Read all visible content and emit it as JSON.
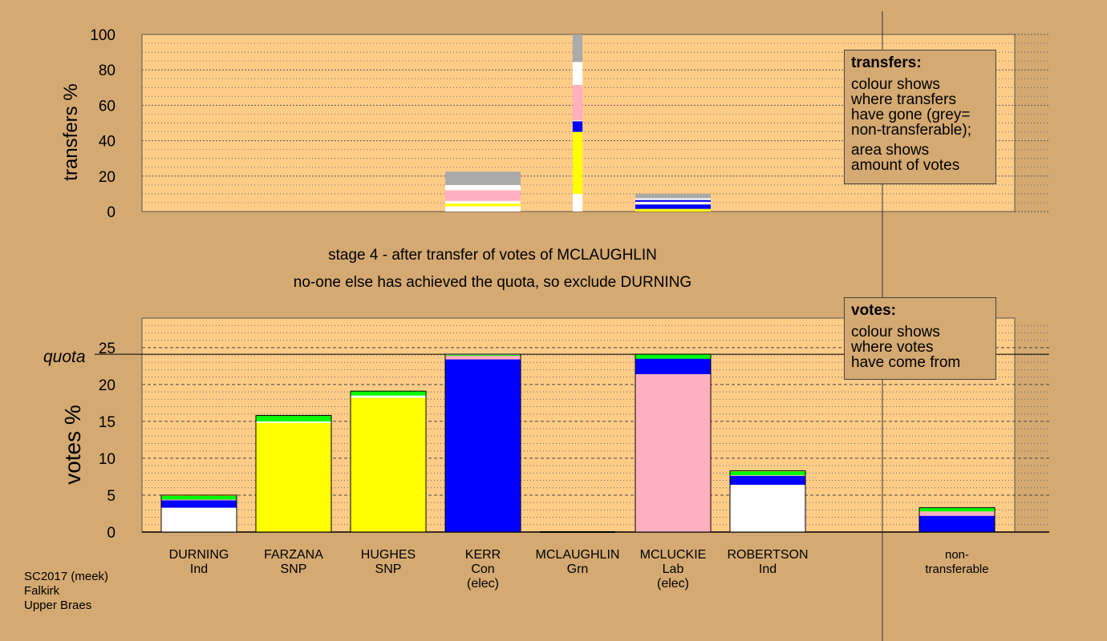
{
  "stage_title": "stage 4 - after transfer of votes of MCLAUGHLIN",
  "stage_subtitle": "no-one else has achieved the quota, so exclude DURNING",
  "footer": {
    "line1": "SC2017 (meek)",
    "line2": "Falkirk",
    "line3": "Upper Braes"
  },
  "legend_transfers": {
    "title": "transfers:",
    "para1": [
      "colour shows",
      "where transfers",
      "have gone (grey=",
      "non-transferable);"
    ],
    "para2": [
      "area shows",
      "amount of votes"
    ]
  },
  "legend_votes": {
    "title": "votes:",
    "para1": [
      "colour shows",
      "where votes",
      "have come from"
    ]
  },
  "colors": {
    "Ind": "#ffffff",
    "SNP": "#ffff00",
    "Con": "#0000ff",
    "Lab": "#ffb0c0",
    "Grn": "#00ff00",
    "NT": "#aaaaaa",
    "plot_bg": "#ffcc88",
    "page_bg": "#d4a972"
  },
  "chart_data": [
    {
      "type": "bar",
      "subtype": "stacked-transfers",
      "ylabel": "transfers %",
      "ylim": [
        0,
        100
      ],
      "yticks": [
        0,
        20,
        40,
        60,
        80,
        100
      ],
      "categories": [
        "DURNING",
        "FARZANA",
        "HUGHES",
        "KERR",
        "MCLAUGHLIN",
        "MCLUCKIE",
        "ROBERTSON",
        "non-transferable"
      ],
      "bar_widths_relative": [
        0,
        0,
        0,
        1,
        0.13,
        1,
        0,
        0
      ],
      "stacks": [
        [],
        [],
        [],
        [
          {
            "color": "Ind",
            "value": 3
          },
          {
            "color": "SNP",
            "value": 1.5
          },
          {
            "color": "Ind",
            "value": 1.5
          },
          {
            "color": "Lab",
            "value": 6
          },
          {
            "color": "Ind",
            "value": 3
          },
          {
            "color": "NT",
            "value": 7.5
          }
        ],
        [
          {
            "color": "Ind",
            "value": 10
          },
          {
            "color": "SNP",
            "value": 35
          },
          {
            "color": "Con",
            "value": 6
          },
          {
            "color": "Ind",
            "value": 0.5
          },
          {
            "color": "Lab",
            "value": 20
          },
          {
            "color": "Ind",
            "value": 13
          },
          {
            "color": "NT",
            "value": 15.5
          }
        ],
        [
          {
            "color": "SNP",
            "value": 1.5
          },
          {
            "color": "Con",
            "value": 2.5
          },
          {
            "color": "Ind",
            "value": 1.5
          },
          {
            "color": "Con",
            "value": 1
          },
          {
            "color": "Ind",
            "value": 1
          },
          {
            "color": "NT",
            "value": 2.5
          }
        ],
        [],
        []
      ]
    },
    {
      "type": "bar",
      "subtype": "stacked-votes",
      "ylabel": "votes %",
      "ylim": [
        0,
        29
      ],
      "yticks": [
        0,
        5,
        10,
        15,
        20,
        25
      ],
      "quota": 24.1,
      "quota_label": "quota",
      "categories": [
        {
          "name": "DURNING",
          "party": "Ind",
          "status": ""
        },
        {
          "name": "FARZANA",
          "party": "SNP",
          "status": ""
        },
        {
          "name": "HUGHES",
          "party": "SNP",
          "status": ""
        },
        {
          "name": "KERR",
          "party": "Con",
          "status": "(elec)"
        },
        {
          "name": "MCLAUGHLIN",
          "party": "Grn",
          "status": ""
        },
        {
          "name": "MCLUCKIE",
          "party": "Lab",
          "status": "(elec)"
        },
        {
          "name": "ROBERTSON",
          "party": "Ind",
          "status": ""
        },
        {
          "name": "non-",
          "party": "transferable",
          "status": ""
        }
      ],
      "stacks": [
        [
          {
            "color": "Ind",
            "value": 3.3
          },
          {
            "color": "Con",
            "value": 1.0
          },
          {
            "color": "Lab",
            "value": 0.1
          },
          {
            "color": "Grn",
            "value": 0.5
          },
          {
            "color": "SNP",
            "value": 0.1
          }
        ],
        [
          {
            "color": "SNP",
            "value": 14.8
          },
          {
            "color": "Ind",
            "value": 0.2
          },
          {
            "color": "Grn",
            "value": 0.8
          }
        ],
        [
          {
            "color": "SNP",
            "value": 18.2
          },
          {
            "color": "Ind",
            "value": 0.3
          },
          {
            "color": "Grn",
            "value": 0.6
          }
        ],
        [
          {
            "color": "Con",
            "value": 23.4
          },
          {
            "color": "Lab",
            "value": 0.5
          },
          {
            "color": "Grn",
            "value": 0.1
          },
          {
            "color": "Ind",
            "value": 0.1
          }
        ],
        [],
        [
          {
            "color": "Lab",
            "value": 21.4
          },
          {
            "color": "Con",
            "value": 2.1
          },
          {
            "color": "Grn",
            "value": 0.6
          }
        ],
        [
          {
            "color": "Ind",
            "value": 6.4
          },
          {
            "color": "Con",
            "value": 1.2
          },
          {
            "color": "Lab",
            "value": 0.1
          },
          {
            "color": "Grn",
            "value": 0.5
          },
          {
            "color": "SNP",
            "value": 0.1
          }
        ],
        [
          {
            "color": "Con",
            "value": 2.2
          },
          {
            "color": "Lab",
            "value": 0.6
          },
          {
            "color": "Grn",
            "value": 0.5
          }
        ]
      ]
    }
  ]
}
